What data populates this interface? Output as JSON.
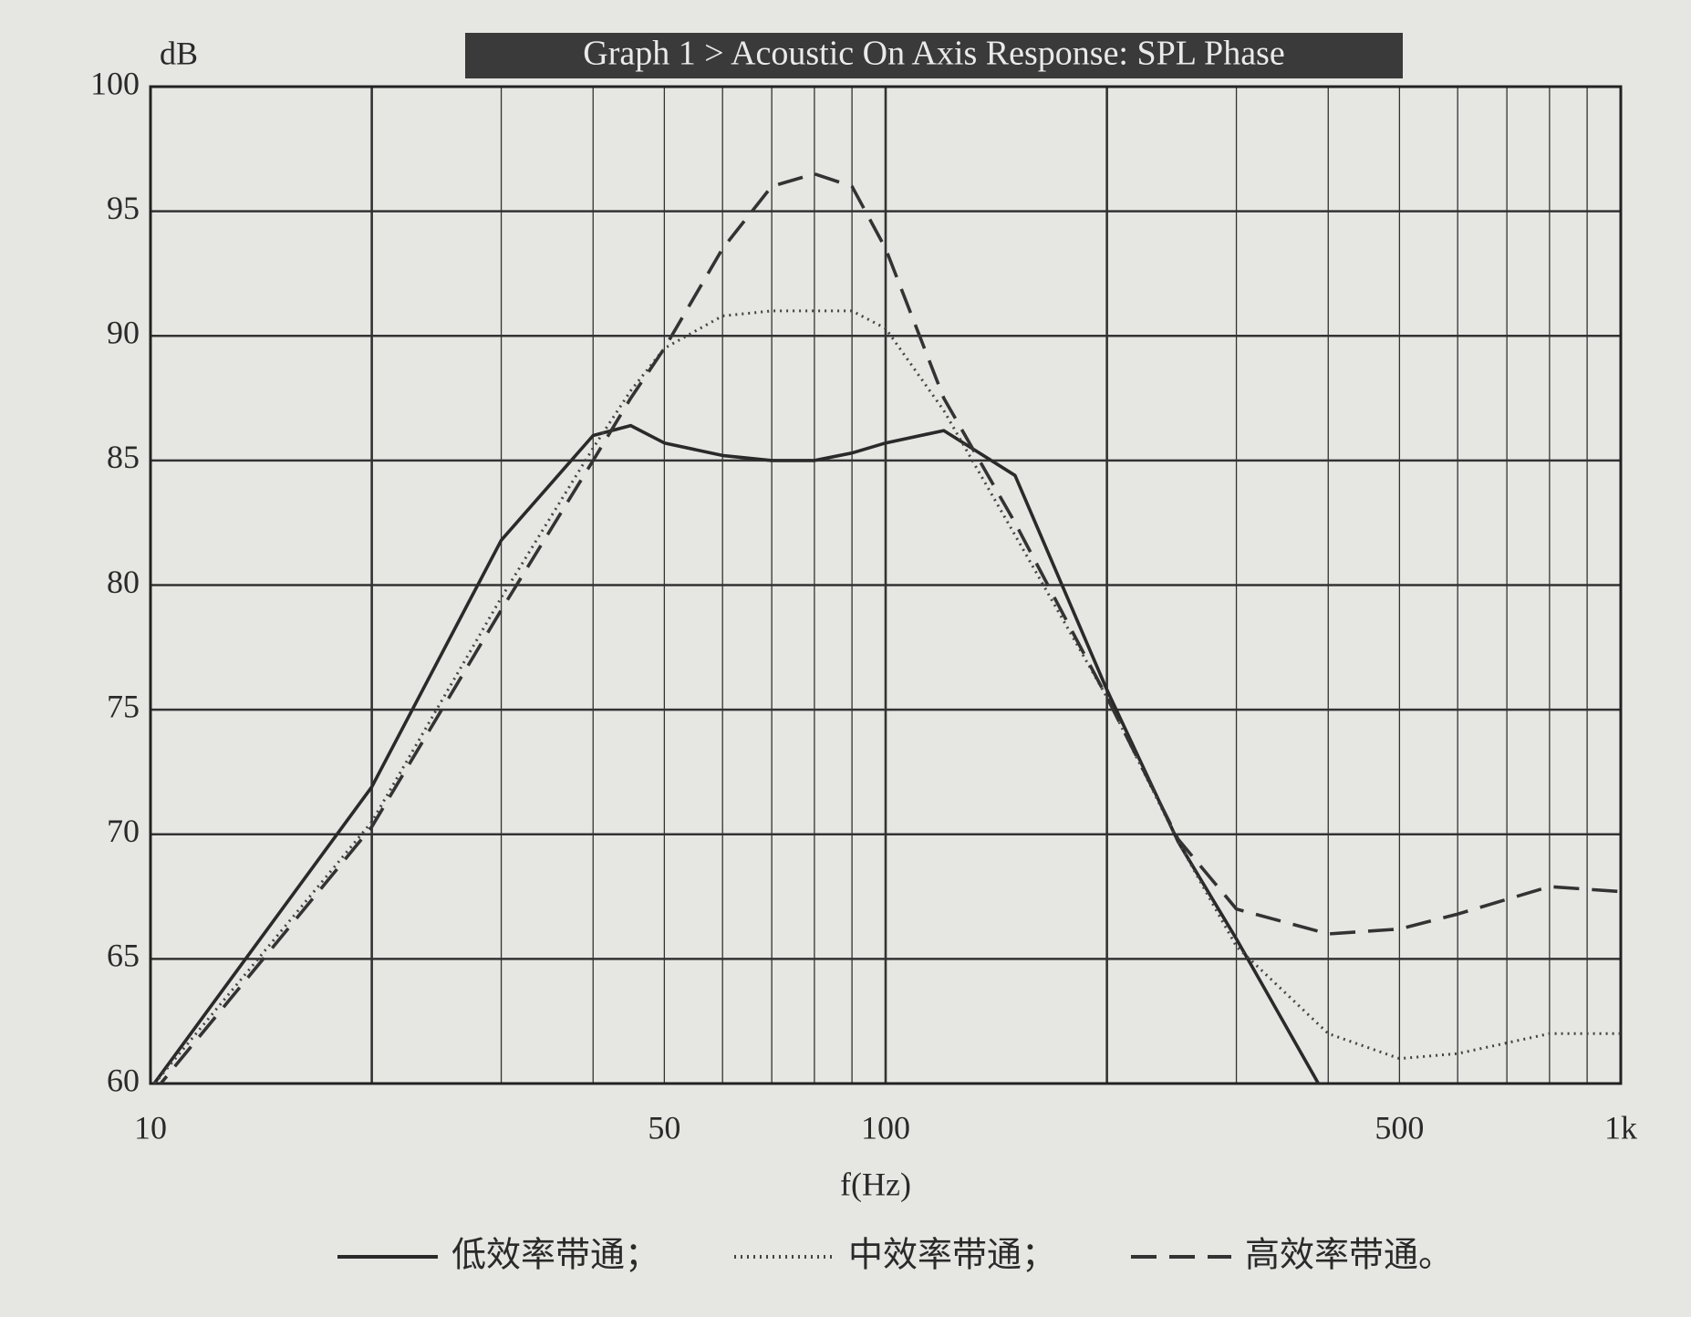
{
  "chart_data": {
    "type": "line",
    "title": "Graph 1 > Acoustic On Axis Response: SPL Phase",
    "y_label": "dB",
    "x_label": "f(Hz)",
    "x_scale": "log",
    "x": [
      10,
      20,
      30,
      40,
      45,
      50,
      60,
      70,
      80,
      90,
      100,
      120,
      150,
      200,
      250,
      300,
      400,
      500,
      600,
      800,
      1000
    ],
    "series": [
      {
        "name": "低效率带通；",
        "color": "#2a2a2a",
        "style": "solid",
        "values": [
          59.8,
          71.9,
          81.8,
          86.0,
          86.4,
          85.7,
          85.2,
          85.0,
          85.0,
          85.3,
          85.7,
          86.2,
          84.4,
          75.8,
          69.7,
          65.8,
          59.3,
          null,
          null,
          null,
          null
        ]
      },
      {
        "name": "中效率带通；",
        "color": "#444444",
        "style": "dotted",
        "values": [
          59.8,
          70.5,
          79.5,
          85.5,
          87.8,
          89.5,
          90.8,
          91.0,
          91.0,
          91.0,
          90.3,
          87.0,
          82.0,
          75.5,
          69.7,
          65.5,
          62.0,
          61.0,
          61.2,
          62.0,
          62.0
        ]
      },
      {
        "name": "高效率带通。",
        "color": "#333333",
        "style": "dashed",
        "values": [
          59.5,
          70.3,
          79.0,
          85.0,
          87.5,
          89.5,
          93.5,
          96.0,
          96.5,
          96.0,
          93.5,
          87.5,
          82.5,
          75.5,
          69.8,
          67.0,
          66.0,
          66.2,
          66.8,
          67.9,
          67.7
        ]
      }
    ],
    "xlim": [
      10,
      1000
    ],
    "ylim": [
      60,
      100
    ],
    "xticks": [
      10,
      50,
      100,
      500,
      {
        "value": 1000,
        "label": "1k"
      }
    ],
    "xgrid": [
      10,
      20,
      30,
      40,
      50,
      60,
      70,
      80,
      90,
      100,
      200,
      300,
      400,
      500,
      600,
      700,
      800,
      900,
      1000
    ],
    "yticks": [
      60,
      65,
      70,
      75,
      80,
      85,
      90,
      95,
      100
    ],
    "grid": true
  }
}
